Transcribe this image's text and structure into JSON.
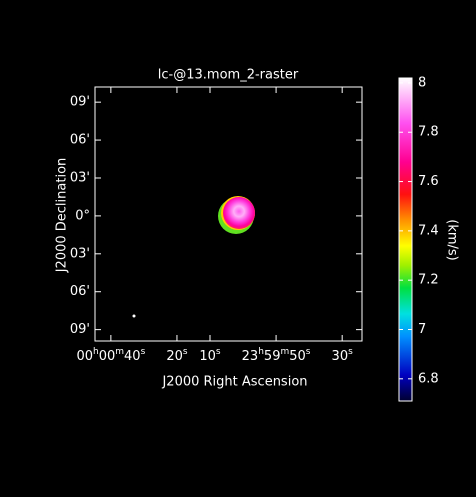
{
  "chart_data": {
    "type": "raster",
    "title": "lc-@13.mom_2-raster",
    "x_label": "J2000 Right Ascension",
    "y_label": "J2000 Declination",
    "xlim": [
      44.8,
      -36
    ],
    "xticks": [
      {
        "value": 40,
        "label": "00h00m40s"
      },
      {
        "value": 20,
        "label": "20s"
      },
      {
        "value": 10,
        "label": "10s"
      },
      {
        "value": -10,
        "label": "23h59m50s"
      },
      {
        "value": -30,
        "label": "30s"
      }
    ],
    "ylim": [
      -9.9,
      10.2
    ],
    "yticks": [
      {
        "value": 9,
        "label": "09'"
      },
      {
        "value": 6,
        "label": "06'"
      },
      {
        "value": 3,
        "label": "03'"
      },
      {
        "value": 0,
        "label": "0°"
      },
      {
        "value": -3,
        "label": "03'"
      },
      {
        "value": -6,
        "label": "06'"
      },
      {
        "value": -9,
        "label": "09'"
      }
    ],
    "colorbar": {
      "label": "(km/s)",
      "lim": [
        6.71,
        8.02
      ],
      "ticks": [
        8,
        7.8,
        7.6,
        7.4,
        7.2,
        7,
        6.8
      ]
    }
  }
}
